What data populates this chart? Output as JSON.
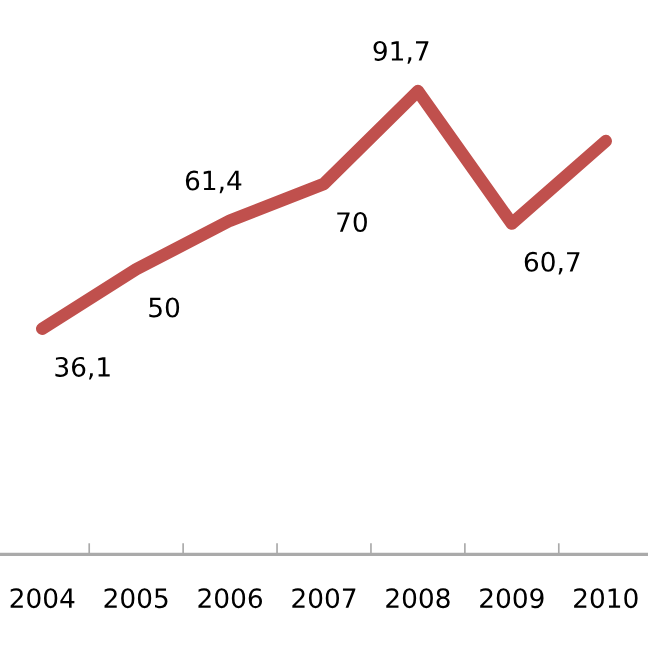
{
  "chart_data": {
    "type": "line",
    "categories": [
      "2004",
      "2005",
      "2006",
      "2007",
      "2008",
      "2009",
      "2010"
    ],
    "series": [
      {
        "color": "#c0504d",
        "values": [
          36.1,
          50,
          61.4,
          70,
          91.7,
          60.7,
          80
        ],
        "value_labels": [
          "36,1",
          "50",
          "61,4",
          "70",
          "91,7",
          "60,7",
          null
        ]
      }
    ],
    "marker": "none",
    "line_style": "solid",
    "grid": false,
    "legend": false,
    "tick_labels": "x"
  }
}
